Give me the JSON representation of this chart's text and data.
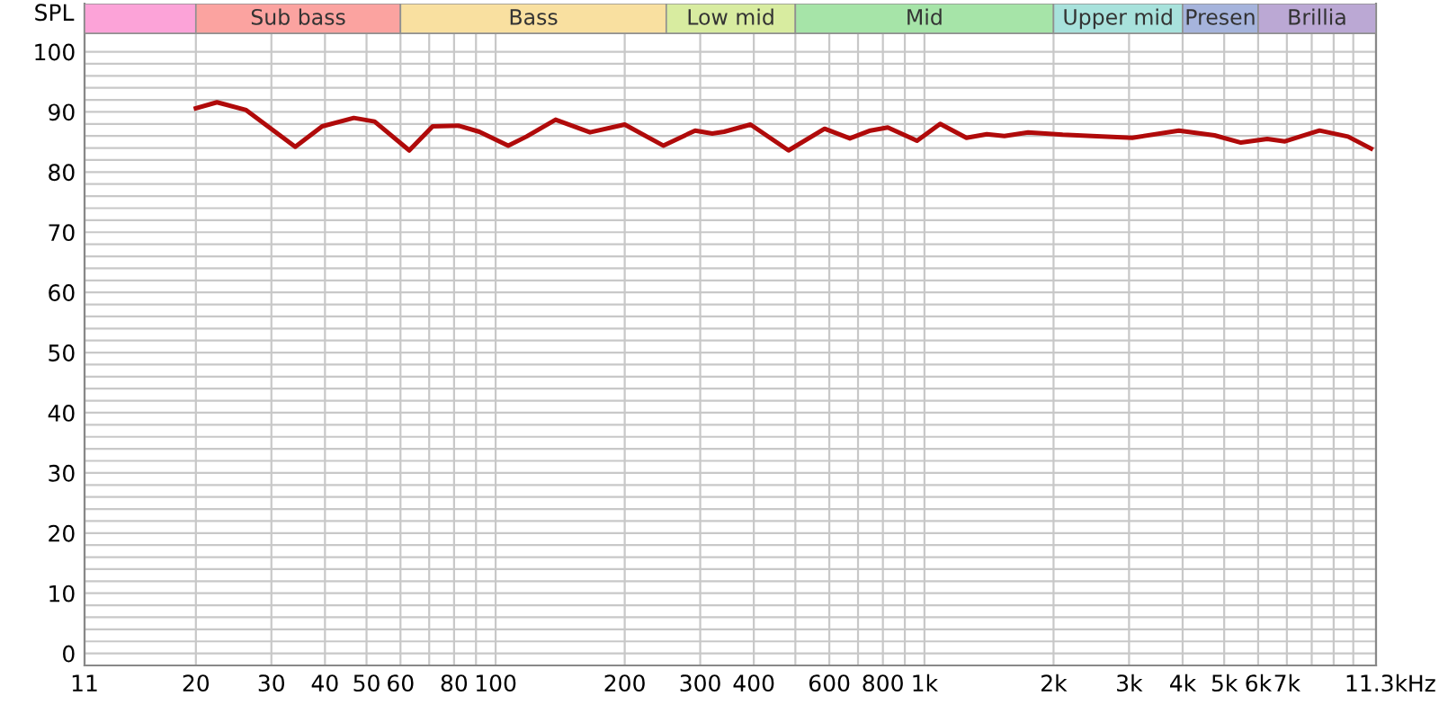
{
  "chart_data": {
    "type": "line",
    "ylabel": "SPL",
    "log": "x",
    "grid": true,
    "xlim": [
      11,
      11300
    ],
    "ylim": [
      -2,
      108
    ],
    "xticks": [
      11,
      20,
      30,
      40,
      50,
      60,
      {
        "value": 70,
        "label": null
      },
      80,
      {
        "value": 90,
        "label": null
      },
      100,
      200,
      300,
      400,
      {
        "value": 500,
        "label": null
      },
      600,
      {
        "value": 700,
        "label": null
      },
      800,
      {
        "value": 900,
        "label": null
      },
      {
        "value": 1000,
        "label": "1k"
      },
      {
        "value": 2000,
        "label": "2k"
      },
      {
        "value": 3000,
        "label": "3k"
      },
      {
        "value": 4000,
        "label": "4k"
      },
      {
        "value": 5000,
        "label": "5k"
      },
      {
        "value": 6000,
        "label": "6k"
      },
      {
        "value": 7000,
        "label": "7k"
      },
      {
        "value": 8000,
        "label": null
      },
      {
        "value": 9000,
        "label": null
      },
      {
        "value": 10000,
        "label": null
      },
      {
        "value": 11300,
        "label": "11.3k"
      }
    ],
    "xlabel": "Hz",
    "yticks": [
      0,
      {
        "value": 2,
        "label": null
      },
      {
        "value": 4,
        "label": null
      },
      {
        "value": 6,
        "label": null
      },
      {
        "value": 8,
        "label": null
      },
      10,
      {
        "value": 12,
        "label": null
      },
      {
        "value": 14,
        "label": null
      },
      {
        "value": 16,
        "label": null
      },
      {
        "value": 18,
        "label": null
      },
      20,
      {
        "value": 22,
        "label": null
      },
      {
        "value": 24,
        "label": null
      },
      {
        "value": 26,
        "label": null
      },
      {
        "value": 28,
        "label": null
      },
      30,
      {
        "value": 32,
        "label": null
      },
      {
        "value": 34,
        "label": null
      },
      {
        "value": 36,
        "label": null
      },
      {
        "value": 38,
        "label": null
      },
      40,
      {
        "value": 42,
        "label": null
      },
      {
        "value": 44,
        "label": null
      },
      {
        "value": 46,
        "label": null
      },
      {
        "value": 48,
        "label": null
      },
      50,
      {
        "value": 52,
        "label": null
      },
      {
        "value": 54,
        "label": null
      },
      {
        "value": 56,
        "label": null
      },
      {
        "value": 58,
        "label": null
      },
      60,
      {
        "value": 62,
        "label": null
      },
      {
        "value": 64,
        "label": null
      },
      {
        "value": 66,
        "label": null
      },
      {
        "value": 68,
        "label": null
      },
      70,
      {
        "value": 72,
        "label": null
      },
      {
        "value": 74,
        "label": null
      },
      {
        "value": 76,
        "label": null
      },
      {
        "value": 78,
        "label": null
      },
      80,
      {
        "value": 82,
        "label": null
      },
      {
        "value": 84,
        "label": null
      },
      {
        "value": 86,
        "label": null
      },
      {
        "value": 88,
        "label": null
      },
      90,
      {
        "value": 92,
        "label": null
      },
      {
        "value": 94,
        "label": null
      },
      {
        "value": 96,
        "label": null
      },
      {
        "value": 98,
        "label": null
      },
      100
    ],
    "bands": [
      {
        "axis": "x",
        "from": 11,
        "to": 20,
        "color": "#fca3d8"
      },
      {
        "axis": "x",
        "from": 20,
        "to": 60,
        "label": "Sub bass",
        "color": "#fba3a0"
      },
      {
        "axis": "x",
        "from": 60,
        "to": 250,
        "label": "Bass",
        "color": "#f9e0a0"
      },
      {
        "axis": "x",
        "from": 250,
        "to": 500,
        "label": "Low mid",
        "color": "#d8eca0"
      },
      {
        "axis": "x",
        "from": 500,
        "to": 2000,
        "label": "Mid",
        "color": "#a6e4a8"
      },
      {
        "axis": "x",
        "from": 2000,
        "to": 4000,
        "label": "Upper mid",
        "color": "#a8e2dc"
      },
      {
        "axis": "x",
        "from": 4000,
        "to": 6000,
        "label": "Presen",
        "color": "#a6b4dc"
      },
      {
        "axis": "x",
        "from": 6000,
        "to": 11300,
        "label": "Brillia",
        "color": "#bba8d4"
      }
    ],
    "series": [
      {
        "color": "#b00a0a",
        "x": [
          20,
          22.4,
          26.2,
          34.1,
          39.4,
          46.7,
          52.2,
          62.9,
          71.3,
          82.1,
          91.6,
          107,
          118,
          138,
          166,
          200,
          246,
          292,
          320,
          341,
          393,
          482,
          585,
          670,
          748,
          821,
          961,
          1088,
          1253,
          1398,
          1536,
          1745,
          2100,
          2458,
          3052,
          3920,
          4746,
          5470,
          6300,
          6930,
          8340,
          9720,
          11000
        ],
        "values": [
          90.6,
          91.6,
          90.3,
          84.2,
          87.6,
          89.0,
          88.4,
          83.6,
          87.6,
          87.7,
          86.7,
          84.4,
          85.9,
          88.7,
          86.6,
          87.9,
          84.4,
          86.9,
          86.4,
          86.7,
          87.9,
          83.6,
          87.2,
          85.6,
          86.9,
          87.4,
          85.2,
          88.0,
          85.7,
          86.3,
          86.0,
          86.6,
          86.2,
          86.0,
          85.7,
          86.9,
          86.1,
          84.9,
          85.5,
          85.1,
          86.9,
          85.9,
          83.9
        ]
      }
    ]
  }
}
